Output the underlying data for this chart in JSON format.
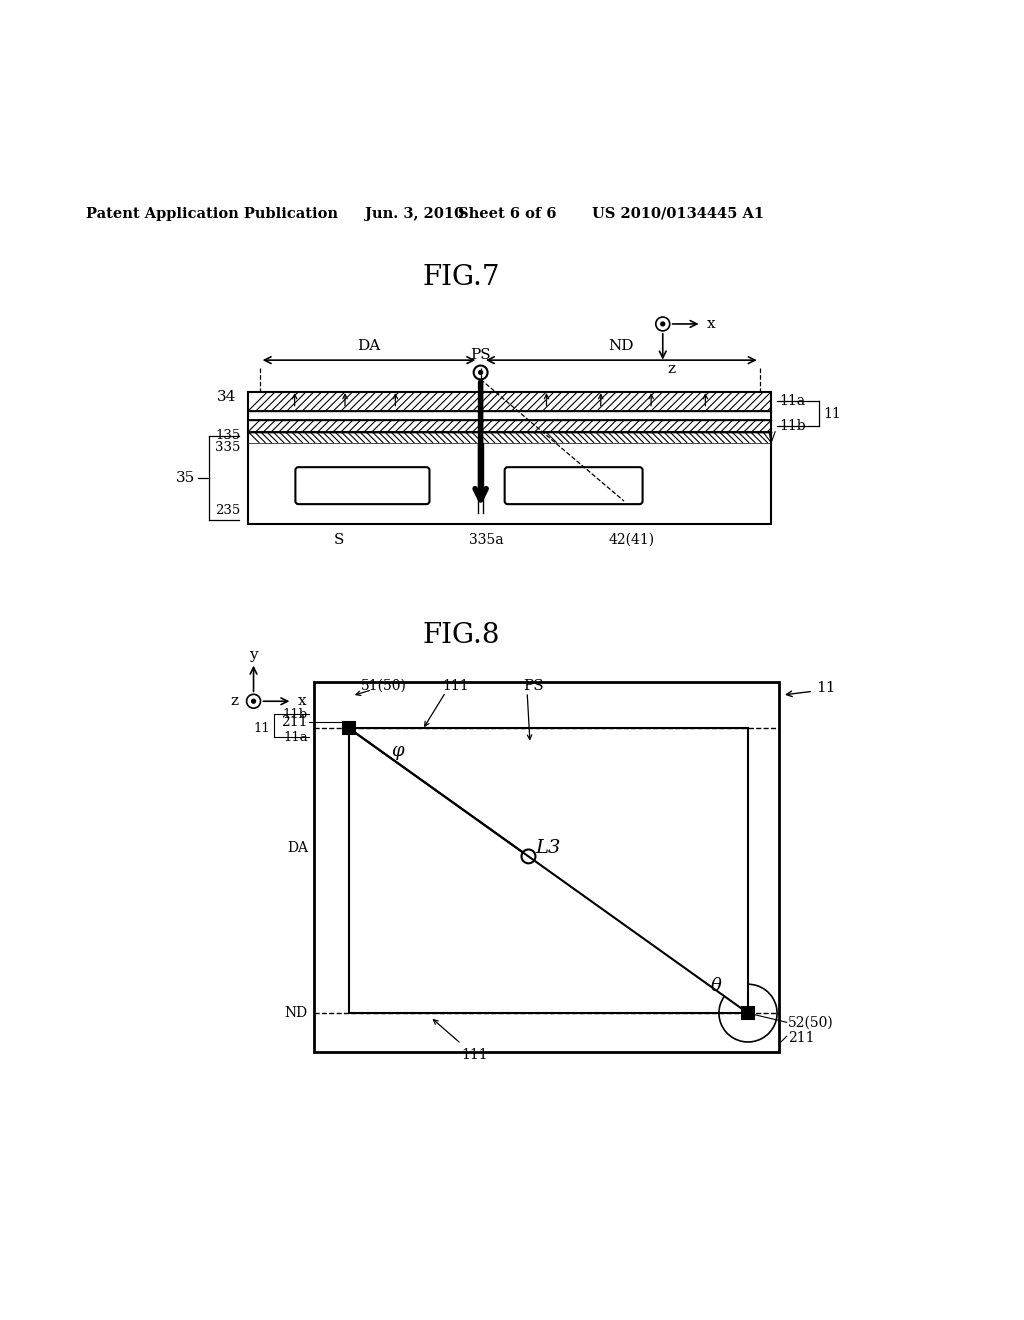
{
  "bg_color": "#ffffff",
  "header_text": "Patent Application Publication",
  "header_date": "Jun. 3, 2010",
  "header_sheet": "Sheet 6 of 6",
  "header_patent": "US 2010/0134445 A1",
  "fig7_title": "FIG.7",
  "fig8_title": "FIG.8"
}
